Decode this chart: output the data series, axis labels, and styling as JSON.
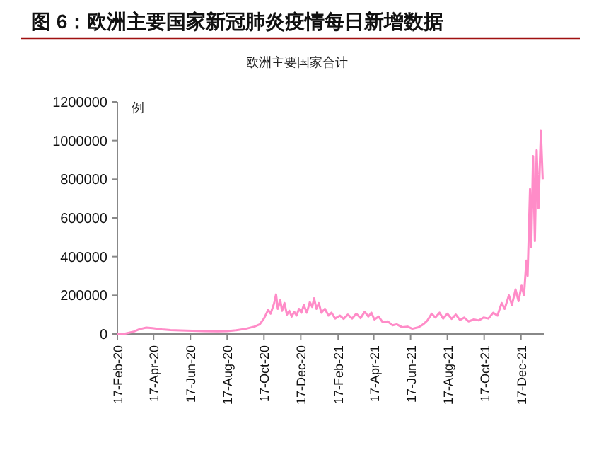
{
  "chart_data": {
    "type": "line",
    "title": "图 6：欧洲主要国家新冠肺炎疫情每日新增数据",
    "subtitle": "欧洲主要国家合计",
    "ylabel": "例",
    "x": [
      "2020-02-17",
      "2020-03-01",
      "2020-03-15",
      "2020-03-25",
      "2020-04-05",
      "2020-04-15",
      "2020-05-01",
      "2020-05-15",
      "2020-06-01",
      "2020-06-20",
      "2020-07-10",
      "2020-08-01",
      "2020-08-17",
      "2020-09-01",
      "2020-09-17",
      "2020-10-01",
      "2020-10-10",
      "2020-10-17",
      "2020-10-24",
      "2020-10-28",
      "2020-11-03",
      "2020-11-06",
      "2020-11-09",
      "2020-11-13",
      "2020-11-16",
      "2020-11-20",
      "2020-11-24",
      "2020-11-28",
      "2020-12-02",
      "2020-12-06",
      "2020-12-10",
      "2020-12-14",
      "2020-12-18",
      "2020-12-22",
      "2020-12-27",
      "2021-01-01",
      "2021-01-05",
      "2021-01-08",
      "2021-01-12",
      "2021-01-16",
      "2021-01-20",
      "2021-01-26",
      "2021-02-01",
      "2021-02-06",
      "2021-02-12",
      "2021-02-20",
      "2021-02-26",
      "2021-03-05",
      "2021-03-12",
      "2021-03-19",
      "2021-03-26",
      "2021-04-02",
      "2021-04-08",
      "2021-04-13",
      "2021-04-18",
      "2021-04-25",
      "2021-05-02",
      "2021-05-10",
      "2021-05-18",
      "2021-05-25",
      "2021-06-03",
      "2021-06-12",
      "2021-06-20",
      "2021-06-30",
      "2021-07-08",
      "2021-07-15",
      "2021-07-22",
      "2021-07-28",
      "2021-08-04",
      "2021-08-10",
      "2021-08-17",
      "2021-08-24",
      "2021-08-31",
      "2021-09-07",
      "2021-09-14",
      "2021-09-21",
      "2021-09-30",
      "2021-10-08",
      "2021-10-16",
      "2021-10-24",
      "2021-11-01",
      "2021-11-08",
      "2021-11-15",
      "2021-11-20",
      "2021-11-27",
      "2021-12-02",
      "2021-12-08",
      "2021-12-13",
      "2021-12-18",
      "2021-12-22",
      "2021-12-26",
      "2021-12-28",
      "2022-01-01",
      "2022-01-03",
      "2022-01-06",
      "2022-01-09",
      "2022-01-12",
      "2022-01-15",
      "2022-01-19",
      "2022-01-22"
    ],
    "series": [
      {
        "color": "#ff8cc8",
        "values": [
          0,
          2000,
          12000,
          25000,
          33000,
          30000,
          24000,
          20000,
          18000,
          16000,
          15000,
          14000,
          15000,
          19000,
          27000,
          38000,
          50000,
          80000,
          125000,
          105000,
          160000,
          205000,
          130000,
          175000,
          120000,
          160000,
          100000,
          120000,
          90000,
          115000,
          95000,
          130000,
          110000,
          150000,
          110000,
          165000,
          140000,
          185000,
          130000,
          160000,
          110000,
          130000,
          95000,
          110000,
          80000,
          95000,
          78000,
          100000,
          80000,
          105000,
          82000,
          115000,
          90000,
          110000,
          75000,
          90000,
          60000,
          65000,
          45000,
          50000,
          35000,
          38000,
          27000,
          35000,
          50000,
          70000,
          105000,
          85000,
          110000,
          80000,
          105000,
          78000,
          100000,
          72000,
          85000,
          65000,
          75000,
          70000,
          85000,
          80000,
          110000,
          95000,
          160000,
          130000,
          200000,
          150000,
          230000,
          170000,
          250000,
          200000,
          380000,
          300000,
          750000,
          450000,
          920000,
          480000,
          950000,
          650000,
          1050000,
          800000
        ]
      }
    ],
    "xlim": [
      "2020-02-17",
      "2022-01-25"
    ],
    "xticks": [
      {
        "value": "2020-02-17",
        "label": "17-Feb-20"
      },
      {
        "value": "2020-04-17",
        "label": "17-Apr-20"
      },
      {
        "value": "2020-06-17",
        "label": "17-Jun-20"
      },
      {
        "value": "2020-08-17",
        "label": "17-Aug-20"
      },
      {
        "value": "2020-10-17",
        "label": "17-Oct-20"
      },
      {
        "value": "2020-12-17",
        "label": "17-Dec-20"
      },
      {
        "value": "2021-02-17",
        "label": "17-Feb-21"
      },
      {
        "value": "2021-04-17",
        "label": "17-Apr-21"
      },
      {
        "value": "2021-06-17",
        "label": "17-Jun-21"
      },
      {
        "value": "2021-08-17",
        "label": "17-Aug-21"
      },
      {
        "value": "2021-10-17",
        "label": "17-Oct-21"
      },
      {
        "value": "2021-12-17",
        "label": "17-Dec-21"
      }
    ],
    "ylim": [
      0,
      1200000
    ],
    "yticks": [
      0,
      200000,
      400000,
      600000,
      800000,
      1000000,
      1200000
    ]
  }
}
